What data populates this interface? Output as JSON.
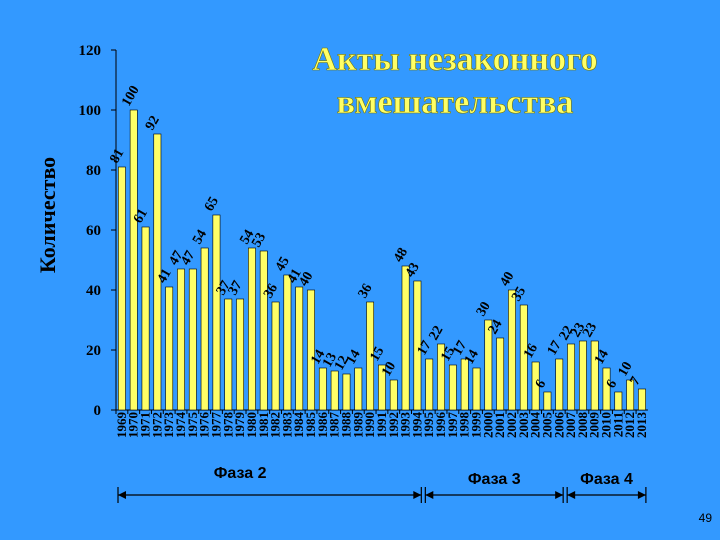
{
  "slide": {
    "page_number": "49",
    "background_color": "#3399ff",
    "bar_color": "#ffff66",
    "bar_outline_color": "#000000"
  },
  "chart_data": {
    "type": "bar",
    "title_lines": [
      "Акты незаконного",
      "вмешательства"
    ],
    "ylabel": "Количество",
    "xlabel": "",
    "ylim": [
      0,
      120
    ],
    "yticks": [
      0,
      20,
      40,
      60,
      80,
      100,
      120
    ],
    "grid": false,
    "categories": [
      "1969",
      "1970",
      "1971",
      "1972",
      "1973",
      "1974",
      "1975",
      "1976",
      "1977",
      "1978",
      "1979",
      "1980",
      "1981",
      "1982",
      "1983",
      "1984",
      "1985",
      "1986",
      "1987",
      "1988",
      "1989",
      "1990",
      "1991",
      "1992",
      "1993",
      "1994",
      "1995",
      "1996",
      "1997",
      "1998",
      "1999",
      "2000",
      "2001",
      "2002",
      "2003",
      "2004",
      "2005",
      "2006",
      "2007",
      "2008",
      "2009",
      "2010",
      "2011",
      "2012",
      "2013"
    ],
    "values": [
      81,
      100,
      61,
      92,
      41,
      47,
      47,
      54,
      65,
      37,
      37,
      54,
      53,
      36,
      45,
      41,
      40,
      14,
      13,
      12,
      14,
      36,
      15,
      10,
      48,
      43,
      17,
      22,
      15,
      17,
      14,
      30,
      24,
      40,
      35,
      16,
      6,
      17,
      22,
      23,
      23,
      14,
      6,
      10,
      7
    ],
    "phases": [
      {
        "label": "Фаза 2",
        "from": "1969",
        "to": "1994"
      },
      {
        "label": "Фаза 3",
        "from": "1995",
        "to": "2006"
      },
      {
        "label": "Фаза 4",
        "from": "2007",
        "to": "2013"
      }
    ]
  }
}
